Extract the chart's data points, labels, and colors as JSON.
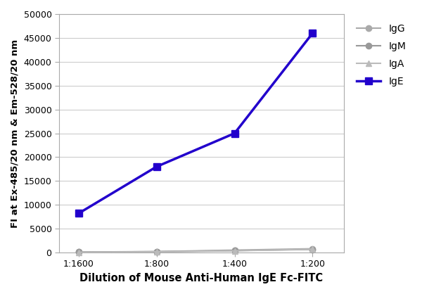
{
  "x_labels": [
    "1:1600",
    "1:800",
    "1:400",
    "1:200"
  ],
  "x_positions": [
    0,
    1,
    2,
    3
  ],
  "series": {
    "IgG": {
      "values": [
        100,
        200,
        500,
        800
      ],
      "color": "#aaaaaa",
      "marker": "o",
      "linewidth": 1.5,
      "markersize": 6
    },
    "IgM": {
      "values": [
        80,
        180,
        400,
        650
      ],
      "color": "#999999",
      "marker": "o",
      "linewidth": 1.5,
      "markersize": 6
    },
    "IgA": {
      "values": [
        60,
        150,
        350,
        700
      ],
      "color": "#bbbbbb",
      "marker": "^",
      "linewidth": 1.5,
      "markersize": 6
    },
    "IgE": {
      "values": [
        8200,
        18000,
        25000,
        46000
      ],
      "color": "#2200cc",
      "marker": "s",
      "linewidth": 2.5,
      "markersize": 7
    }
  },
  "xlabel": "Dilution of Mouse Anti-Human IgE Fc-FITC",
  "ylabel": "FI at Ex-485/20 nm & Em-528/20 nm",
  "ylim": [
    0,
    50000
  ],
  "yticks": [
    0,
    5000,
    10000,
    15000,
    20000,
    25000,
    30000,
    35000,
    40000,
    45000,
    50000
  ],
  "xlabel_fontsize": 10.5,
  "ylabel_fontsize": 9.5,
  "tick_fontsize": 9,
  "legend_fontsize": 10,
  "background_color": "#ffffff",
  "grid_color": "#cccccc",
  "legend_order": [
    "IgG",
    "IgM",
    "IgA",
    "IgE"
  ]
}
